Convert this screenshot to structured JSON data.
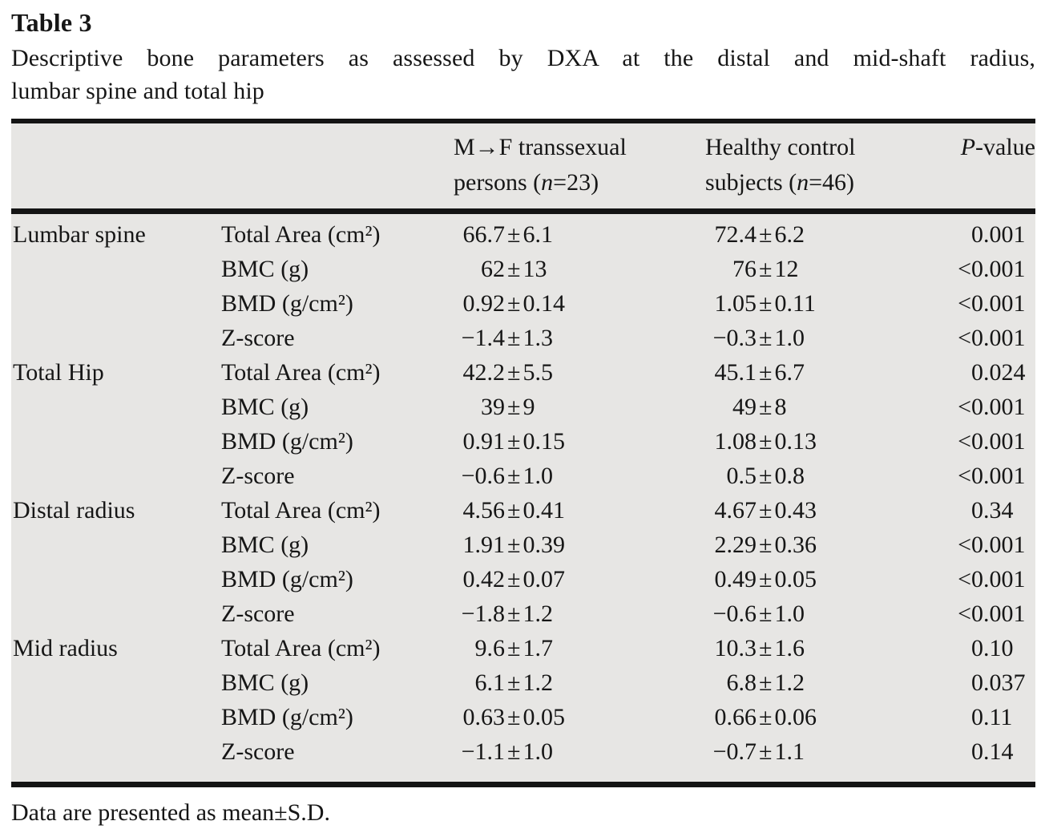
{
  "title": "Table 3",
  "caption": {
    "line1": "Descriptive bone parameters as assessed by DXA at the distal and mid-shaft radius,",
    "line2": "lumbar spine and total hip"
  },
  "symbols": {
    "plus_minus": "±",
    "less_than": "<"
  },
  "colors": {
    "table_background": "#e7e6e4",
    "rule": "#141414",
    "text": "#161616"
  },
  "header": {
    "group_col": "",
    "param_col": "",
    "transsexual": {
      "line1": "M→F transsexual",
      "line2_pre": "persons (",
      "n": "n",
      "line2_post": "=23)"
    },
    "controls": {
      "line1": "Healthy control",
      "line2_pre": "subjects (",
      "n": "n",
      "line2_post": "=46)"
    },
    "pvalue": {
      "italic": "P",
      "rest": "-value"
    }
  },
  "table": {
    "rows": [
      {
        "group": "Lumbar spine",
        "param": "Total Area (cm²)",
        "v1": {
          "m": "66.7",
          "s": "6.1"
        },
        "v2": {
          "m": "72.4",
          "s": "6.2"
        },
        "p": {
          "lt": "",
          "val": "0.001"
        }
      },
      {
        "group": "",
        "param": "BMC (g)",
        "v1": {
          "m": "62",
          "s": "13"
        },
        "v2": {
          "m": "76",
          "s": "12"
        },
        "p": {
          "lt": "<",
          "val": "0.001"
        }
      },
      {
        "group": "",
        "param": "BMD (g/cm²)",
        "v1": {
          "m": "0.92",
          "s": "0.14"
        },
        "v2": {
          "m": "1.05",
          "s": "0.11"
        },
        "p": {
          "lt": "<",
          "val": "0.001"
        }
      },
      {
        "group": "",
        "param": "Z-score",
        "v1": {
          "m": "−1.4",
          "s": "1.3"
        },
        "v2": {
          "m": "−0.3",
          "s": "1.0"
        },
        "p": {
          "lt": "<",
          "val": "0.001"
        }
      },
      {
        "group": "Total Hip",
        "param": "Total Area (cm²)",
        "v1": {
          "m": "42.2",
          "s": "5.5"
        },
        "v2": {
          "m": "45.1",
          "s": "6.7"
        },
        "p": {
          "lt": "",
          "val": "0.024"
        }
      },
      {
        "group": "",
        "param": "BMC (g)",
        "v1": {
          "m": "39",
          "s": "9"
        },
        "v2": {
          "m": "49",
          "s": "8"
        },
        "p": {
          "lt": "<",
          "val": "0.001"
        }
      },
      {
        "group": "",
        "param": "BMD (g/cm²)",
        "v1": {
          "m": "0.91",
          "s": "0.15"
        },
        "v2": {
          "m": "1.08",
          "s": "0.13"
        },
        "p": {
          "lt": "<",
          "val": "0.001"
        }
      },
      {
        "group": "",
        "param": "Z-score",
        "v1": {
          "m": "−0.6",
          "s": "1.0"
        },
        "v2": {
          "m": "0.5",
          "s": "0.8"
        },
        "p": {
          "lt": "<",
          "val": "0.001"
        }
      },
      {
        "group": "Distal radius",
        "param": "Total Area (cm²)",
        "v1": {
          "m": "4.56",
          "s": "0.41"
        },
        "v2": {
          "m": "4.67",
          "s": "0.43"
        },
        "p": {
          "lt": "",
          "val": "0.34"
        }
      },
      {
        "group": "",
        "param": "BMC (g)",
        "v1": {
          "m": "1.91",
          "s": "0.39"
        },
        "v2": {
          "m": "2.29",
          "s": "0.36"
        },
        "p": {
          "lt": "<",
          "val": "0.001"
        }
      },
      {
        "group": "",
        "param": "BMD (g/cm²)",
        "v1": {
          "m": "0.42",
          "s": "0.07"
        },
        "v2": {
          "m": "0.49",
          "s": "0.05"
        },
        "p": {
          "lt": "<",
          "val": "0.001"
        }
      },
      {
        "group": "",
        "param": "Z-score",
        "v1": {
          "m": "−1.8",
          "s": "1.2"
        },
        "v2": {
          "m": "−0.6",
          "s": "1.0"
        },
        "p": {
          "lt": "<",
          "val": "0.001"
        }
      },
      {
        "group": "Mid radius",
        "param": "Total Area (cm²)",
        "v1": {
          "m": "9.6",
          "s": "1.7"
        },
        "v2": {
          "m": "10.3",
          "s": "1.6"
        },
        "p": {
          "lt": "",
          "val": "0.10"
        }
      },
      {
        "group": "",
        "param": "BMC (g)",
        "v1": {
          "m": "6.1",
          "s": "1.2"
        },
        "v2": {
          "m": "6.8",
          "s": "1.2"
        },
        "p": {
          "lt": "",
          "val": "0.037"
        }
      },
      {
        "group": "",
        "param": "BMD (g/cm²)",
        "v1": {
          "m": "0.63",
          "s": "0.05"
        },
        "v2": {
          "m": "0.66",
          "s": "0.06"
        },
        "p": {
          "lt": "",
          "val": "0.11"
        }
      },
      {
        "group": "",
        "param": "Z-score",
        "v1": {
          "m": "−1.1",
          "s": "1.0"
        },
        "v2": {
          "m": "−0.7",
          "s": "1.1"
        },
        "p": {
          "lt": "",
          "val": "0.14"
        }
      }
    ]
  },
  "footnote": "Data are presented as mean±S.D."
}
